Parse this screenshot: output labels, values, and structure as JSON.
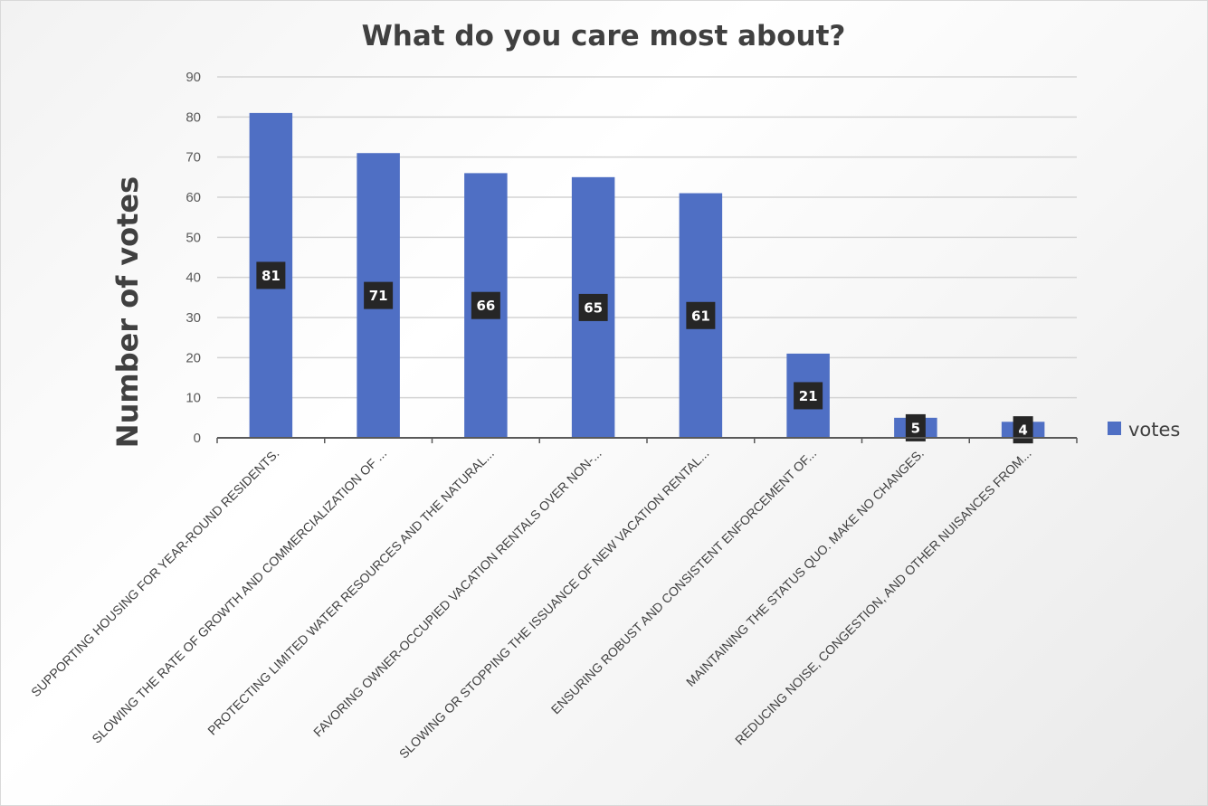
{
  "chart_data": {
    "type": "bar",
    "title": "What do you care most about?",
    "xlabel": "",
    "ylabel": "Number of votes",
    "ylim": [
      0,
      90
    ],
    "yticks": [
      0,
      10,
      20,
      30,
      40,
      50,
      60,
      70,
      80,
      90
    ],
    "grid": true,
    "legend_position": "right",
    "categories": [
      "SUPPORTING HOUSING FOR YEAR-ROUND RESIDENTS.",
      "SLOWING THE RATE OF GROWTH AND COMMERCIALIZATION OF ...",
      "PROTECTING LIMITED WATER RESOURCES AND THE NATURAL...",
      "FAVORING OWNER-OCCUPIED VACATION RENTALS OVER NON-...",
      "SLOWING OR STOPPING THE ISSUANCE OF NEW VACATION RENTAL...",
      "ENSURING ROBUST AND CONSISTENT ENFORCEMENT OF...",
      "MAINTAINING THE STATUS QUO. MAKE NO CHANGES.",
      "REDUCING NOISE, CONGESTION, AND OTHER NUISANCES FROM..."
    ],
    "series": [
      {
        "name": "votes",
        "values": [
          81,
          71,
          66,
          65,
          61,
          21,
          5,
          4
        ],
        "color": "#4f6fc4"
      }
    ],
    "data_labels": [
      "81",
      "71",
      "66",
      "65",
      "61",
      "21",
      "5",
      "4"
    ],
    "label_box_color": "#262626"
  }
}
